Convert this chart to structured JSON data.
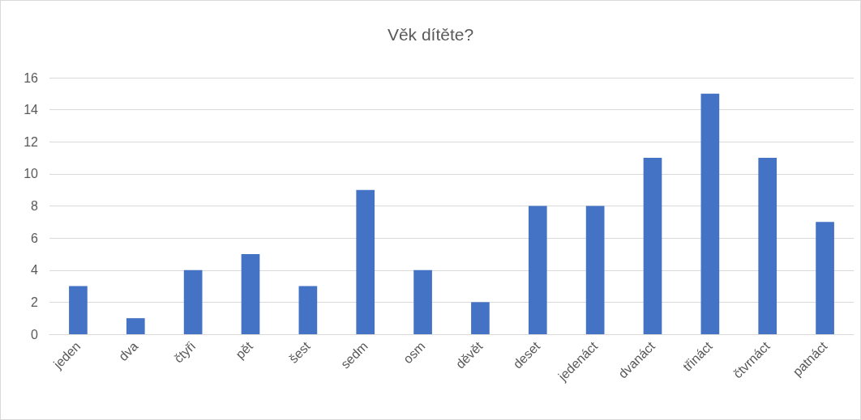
{
  "chart_data": {
    "type": "bar",
    "title": "Věk dítěte?",
    "categories": [
      "jeden",
      "dva",
      "čtyři",
      "pět",
      "šest",
      "sedm",
      "osm",
      "děvět",
      "deset",
      "jedenáct",
      "dvanáct",
      "třináct",
      "čtvrnáct",
      "patnáct"
    ],
    "values": [
      3,
      1,
      4,
      5,
      3,
      9,
      4,
      2,
      8,
      8,
      11,
      15,
      11,
      7
    ],
    "color": "#4472c4",
    "ylim": [
      0,
      16
    ],
    "yticks": [
      0,
      2,
      4,
      6,
      8,
      10,
      12,
      14,
      16
    ],
    "grid": "y"
  }
}
